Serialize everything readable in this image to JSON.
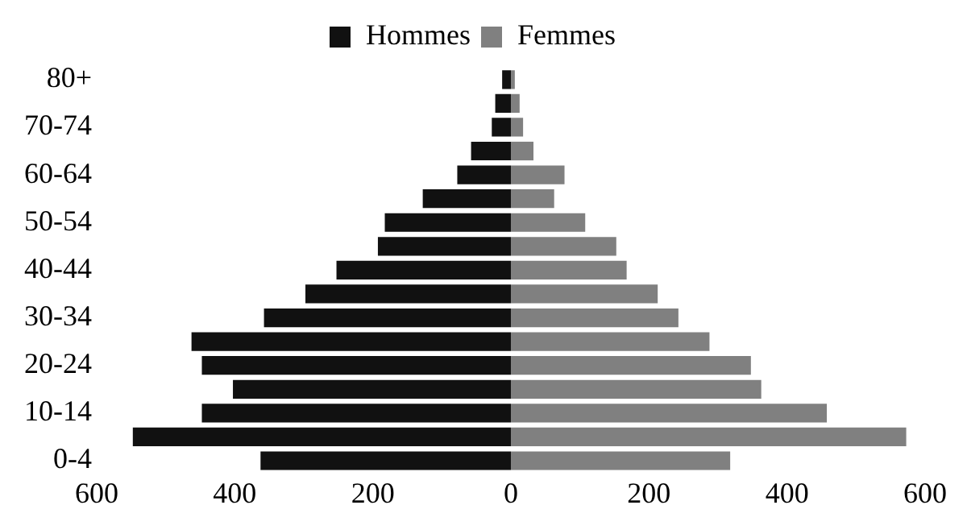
{
  "chart_data": {
    "type": "bar",
    "orientation": "horizontal",
    "stacked": true,
    "categories": [
      "80+",
      null,
      "70-74",
      null,
      "60-64",
      null,
      "50-54",
      null,
      "40-44",
      null,
      "30-34",
      null,
      "20-24",
      null,
      "10-14",
      null,
      "0-4"
    ],
    "series": [
      {
        "name": "Hommes",
        "color": "#111111",
        "values": [
          -15,
          -25,
          -30,
          -60,
          -80,
          -130,
          -185,
          -195,
          -255,
          -300,
          -360,
          -465,
          -450,
          -405,
          -450,
          -550,
          -365
        ]
      },
      {
        "name": "Femmes",
        "color": "#808080",
        "values": [
          8,
          15,
          20,
          35,
          80,
          65,
          110,
          155,
          170,
          215,
          245,
          290,
          350,
          365,
          460,
          575,
          320
        ]
      }
    ],
    "xlim": [
      -600,
      600
    ],
    "xticks": [
      {
        "value": -600,
        "label": "600"
      },
      {
        "value": -400,
        "label": "400"
      },
      {
        "value": -200,
        "label": "200"
      },
      0,
      200,
      400,
      600
    ],
    "grid": false,
    "legend": "top"
  }
}
